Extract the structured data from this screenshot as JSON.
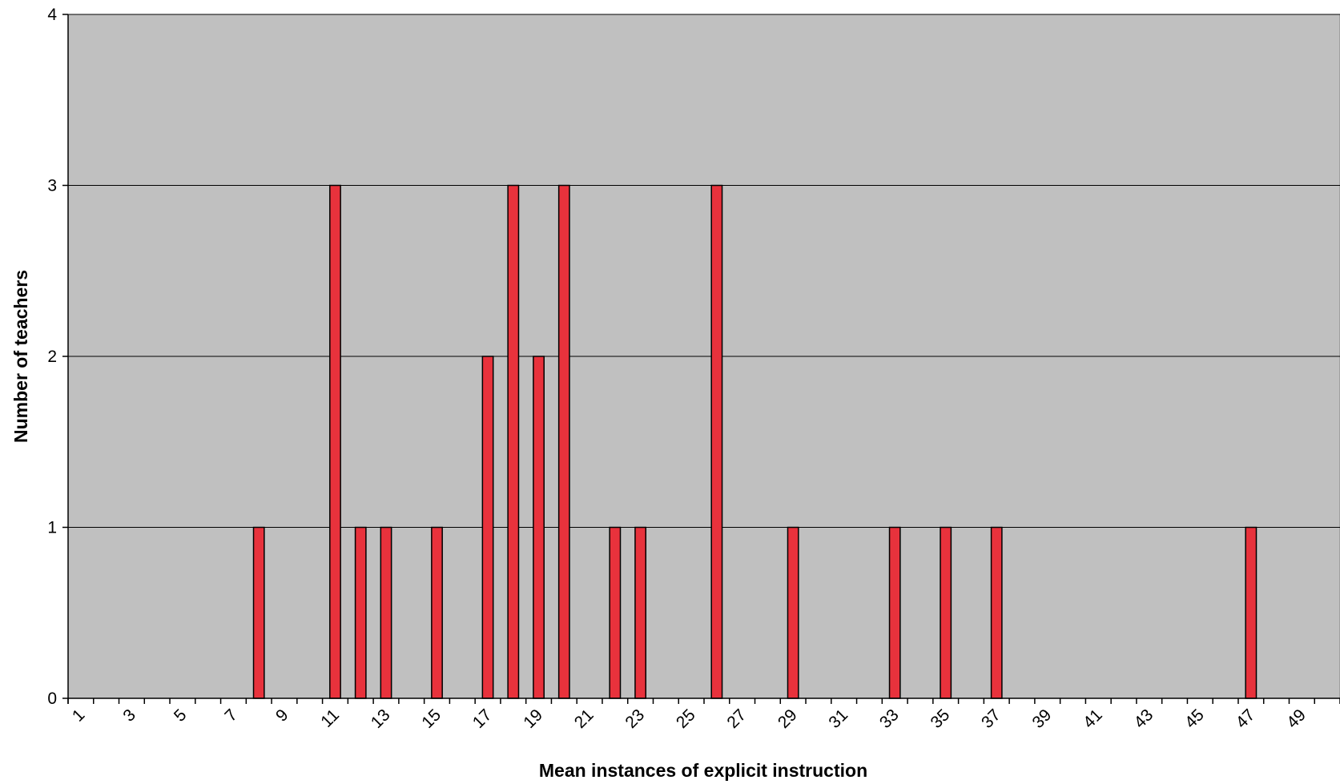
{
  "chart_data": {
    "type": "bar",
    "title": "",
    "xlabel": "Mean instances of explicit instruction",
    "ylabel": "Number of teachers",
    "ylim": [
      0,
      4
    ],
    "yticks": [
      "0",
      "1",
      "2",
      "3",
      "4"
    ],
    "grid": true,
    "categories": [
      1,
      2,
      3,
      4,
      5,
      6,
      7,
      8,
      9,
      10,
      11,
      12,
      13,
      14,
      15,
      16,
      17,
      18,
      19,
      20,
      21,
      22,
      23,
      24,
      25,
      26,
      27,
      28,
      29,
      30,
      31,
      32,
      33,
      34,
      35,
      36,
      37,
      38,
      39,
      40,
      41,
      42,
      43,
      44,
      45,
      46,
      47,
      48,
      49,
      50
    ],
    "xtick_labels": [
      "1",
      "3",
      "5",
      "7",
      "9",
      "11",
      "13",
      "15",
      "17",
      "19",
      "21",
      "23",
      "25",
      "27",
      "29",
      "31",
      "33",
      "35",
      "37",
      "39",
      "41",
      "43",
      "45",
      "47",
      "49"
    ],
    "values": [
      0,
      0,
      0,
      0,
      0,
      0,
      0,
      1,
      0,
      0,
      3,
      1,
      1,
      0,
      1,
      0,
      2,
      3,
      2,
      3,
      0,
      1,
      1,
      0,
      0,
      3,
      0,
      0,
      1,
      0,
      0,
      0,
      1,
      0,
      1,
      0,
      1,
      0,
      0,
      0,
      0,
      0,
      0,
      0,
      0,
      0,
      1,
      0,
      0,
      0
    ],
    "colors": {
      "plot_background": "#c0c0c0",
      "bar_fill": "#e8323c",
      "bar_stroke": "#000000",
      "gridline": "#000000"
    }
  }
}
